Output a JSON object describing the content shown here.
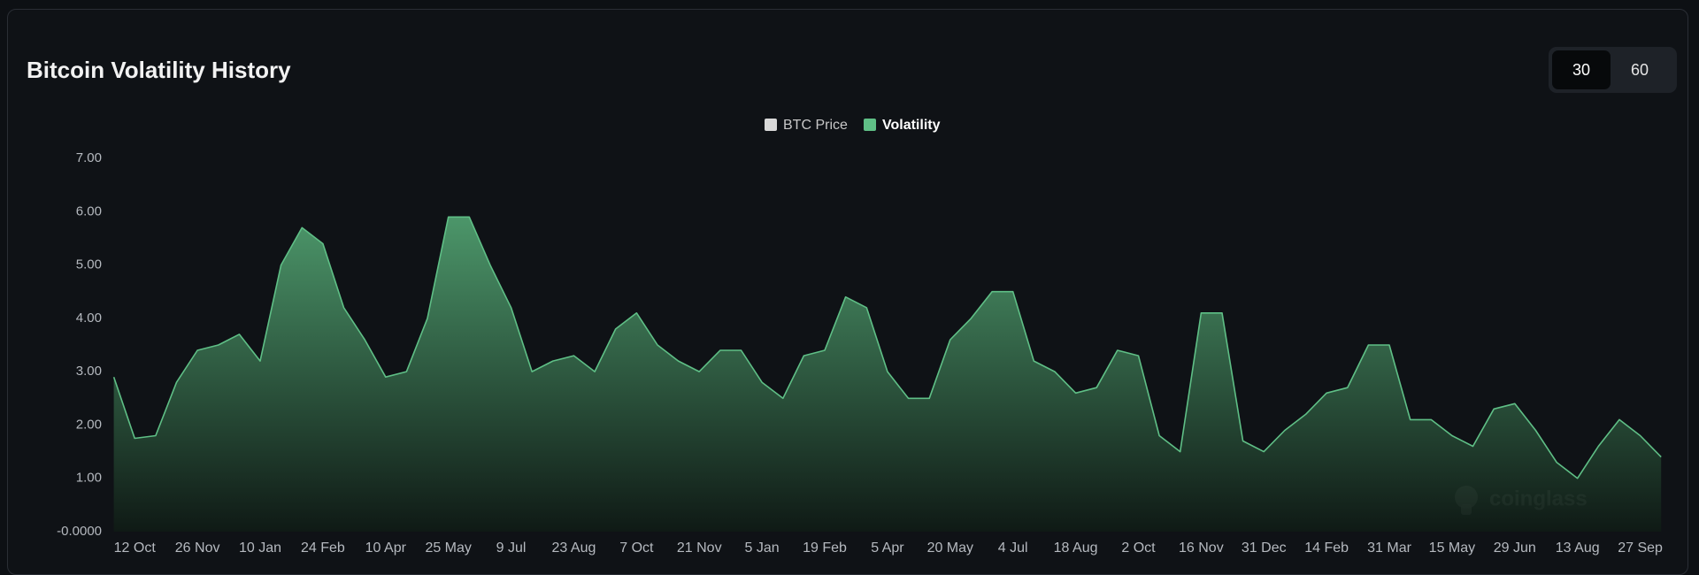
{
  "chart_data": {
    "type": "area",
    "title": "Bitcoin Volatility History",
    "controls": [
      "30",
      "60"
    ],
    "brand": "coinglass",
    "hidden_series": [
      {
        "name": "BTC Price",
        "color": "#d9d9d9"
      }
    ],
    "categories": [
      null,
      "12 Oct",
      null,
      null,
      "26 Nov",
      null,
      null,
      "10 Jan",
      null,
      null,
      "24 Feb",
      null,
      null,
      "10 Apr",
      null,
      null,
      "25 May",
      null,
      null,
      "9 Jul",
      null,
      null,
      "23 Aug",
      null,
      null,
      "7 Oct",
      null,
      null,
      "21 Nov",
      null,
      null,
      "5 Jan",
      null,
      null,
      "19 Feb",
      null,
      null,
      "5 Apr",
      null,
      null,
      "20 May",
      null,
      null,
      "4 Jul",
      null,
      null,
      "18 Aug",
      null,
      null,
      "2 Oct",
      null,
      null,
      "16 Nov",
      null,
      null,
      "31 Dec",
      null,
      null,
      "14 Feb",
      null,
      null,
      "31 Mar",
      null,
      null,
      "15 May",
      null,
      null,
      "29 Jun",
      null,
      null,
      "13 Aug",
      null,
      null,
      "27 Sep",
      null
    ],
    "series": [
      {
        "name": "Volatility",
        "color": "#5fbf86",
        "values": [
          2.9,
          1.75,
          1.8,
          2.8,
          3.4,
          3.5,
          3.7,
          3.2,
          5.0,
          5.7,
          5.4,
          4.2,
          3.6,
          2.9,
          3.0,
          4.0,
          5.9,
          5.9,
          5.0,
          4.2,
          3.0,
          3.2,
          3.3,
          3.0,
          3.8,
          4.1,
          3.5,
          3.2,
          3.0,
          3.4,
          3.4,
          2.8,
          2.5,
          3.3,
          3.4,
          4.4,
          4.2,
          3.0,
          2.5,
          2.5,
          3.6,
          4.0,
          4.5,
          4.5,
          3.2,
          3.0,
          2.6,
          2.7,
          3.4,
          3.3,
          1.8,
          1.5,
          4.1,
          4.1,
          1.7,
          1.5,
          1.9,
          2.2,
          2.6,
          2.7,
          3.5,
          3.5,
          2.1,
          2.1,
          1.8,
          1.6,
          2.3,
          2.4,
          1.9,
          1.3,
          1.0,
          1.6,
          2.1,
          1.8,
          1.4
        ]
      }
    ],
    "ylim": [
      0,
      7
    ],
    "yticks": [
      {
        "value": 0,
        "label": "-0.0000"
      },
      {
        "value": 1,
        "label": "1.00"
      },
      {
        "value": 2,
        "label": "2.00"
      },
      {
        "value": 3,
        "label": "3.00"
      },
      {
        "value": 4,
        "label": "4.00"
      },
      {
        "value": 5,
        "label": "5.00"
      },
      {
        "value": 6,
        "label": "6.00"
      },
      {
        "value": 7,
        "label": "7.00"
      }
    ],
    "grid": false,
    "legend": "top"
  }
}
